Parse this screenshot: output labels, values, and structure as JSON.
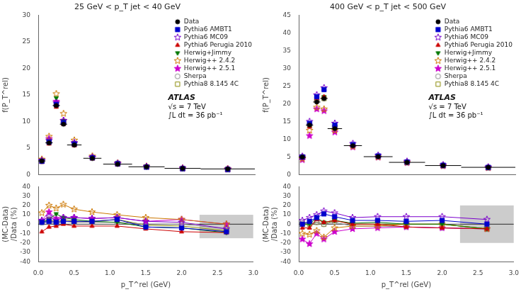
{
  "chart_data": [
    {
      "type": "scatter",
      "title": "25 GeV < p_T jet < 40 GeV",
      "y_label": "f(P_T^rel)",
      "x": [
        0.05,
        0.15,
        0.25,
        0.35,
        0.5,
        0.75,
        1.1,
        1.5,
        2.0,
        2.625
      ],
      "xlim": [
        0,
        3
      ],
      "xticks": [
        {
          "value": 0,
          "label": "0.0"
        },
        {
          "value": 0.5,
          "label": "0.5"
        },
        {
          "value": 1,
          "label": "1.0"
        },
        {
          "value": 1.5,
          "label": "1.5"
        },
        {
          "value": 2,
          "label": "2.0"
        },
        {
          "value": 2.5,
          "label": "2.5"
        },
        {
          "value": 3,
          "label": "3.0"
        }
      ],
      "ylim": [
        0,
        30
      ],
      "yticks": [
        0,
        5,
        10,
        15,
        20,
        25,
        30
      ],
      "grid": false,
      "legend": "upper right",
      "tick_labels": "y",
      "annotations": [
        "ATLAS",
        "√s = 7 TeV",
        "∫L dt = 36 pb⁻¹"
      ],
      "series": [
        {
          "name": "Data",
          "color": "#000000",
          "marker": "circle",
          "values": [
            2.6,
            6.0,
            13.0,
            9.5,
            5.6,
            3.1,
            2.0,
            1.5,
            1.2,
            1.1
          ],
          "x_errors": [
            0.05,
            0.05,
            0.05,
            0.05,
            0.1,
            0.125,
            0.2,
            0.25,
            0.25,
            0.375
          ]
        },
        {
          "name": "Pythia6 AMBT1",
          "color": "#0000cc",
          "marker": "square",
          "values": [
            2.55,
            6.15,
            13.2,
            9.8,
            5.8,
            3.2,
            2.1,
            1.46,
            1.16,
            1.01
          ]
        },
        {
          "name": "Pythia6 MC09",
          "color": "#7b00cc",
          "marker": "star_open",
          "values": [
            2.7,
            6.5,
            13.5,
            10.2,
            6.0,
            3.3,
            2.14,
            1.55,
            1.22,
            1.05
          ]
        },
        {
          "name": "Pythia6 Perugia 2010",
          "color": "#cc0000",
          "marker": "triangle",
          "values": [
            2.38,
            5.82,
            12.74,
            9.5,
            5.49,
            3.04,
            1.96,
            1.43,
            1.1,
            1.0
          ]
        },
        {
          "name": "Herwig+Jimmy",
          "color": "#007700",
          "marker": "triangle_down",
          "values": [
            2.63,
            6.3,
            14.43,
            10.15,
            5.88,
            3.19,
            2.04,
            1.46,
            1.15,
            1.0
          ]
        },
        {
          "name": "Herwig++ 2.4.2",
          "color": "#cc7700",
          "marker": "star_open",
          "values": [
            2.91,
            7.2,
            15.21,
            11.49,
            6.49,
            3.5,
            2.2,
            1.61,
            1.26,
            1.1
          ]
        },
        {
          "name": "Herwig++ 2.5.1",
          "color": "#cc00cc",
          "marker": "star",
          "values": [
            2.71,
            6.78,
            13.78,
            10.17,
            6.0,
            3.29,
            2.14,
            1.55,
            1.26,
            1.1
          ]
        },
        {
          "name": "Sherpa",
          "color": "#888888",
          "marker": "circle_open",
          "values": [
            2.53,
            6.12,
            13.0,
            9.79,
            5.71,
            3.16,
            2.04,
            1.5,
            1.2,
            1.04
          ]
        },
        {
          "name": "Pythia8 8.145 4C",
          "color": "#888800",
          "marker": "square_open",
          "values": [
            2.65,
            6.3,
            13.26,
            9.98,
            5.77,
            3.19,
            2.1,
            1.48,
            1.18,
            1.02
          ]
        }
      ]
    },
    {
      "type": "line",
      "x_label": "p_T^rel (GeV)",
      "y_label": "(MC-Data)\n/Data (%)",
      "x": [
        0.05,
        0.15,
        0.25,
        0.35,
        0.5,
        0.75,
        1.1,
        1.5,
        2.0,
        2.625
      ],
      "xlim": [
        0,
        3
      ],
      "xticks": [
        {
          "value": 0,
          "label": "0.0"
        },
        {
          "value": 0.5,
          "label": "0.5"
        },
        {
          "value": 1,
          "label": "1.0"
        },
        {
          "value": 1.5,
          "label": "1.5"
        },
        {
          "value": 2,
          "label": "2.0"
        },
        {
          "value": 2.5,
          "label": "2.5"
        },
        {
          "value": 3,
          "label": "3.0"
        }
      ],
      "ylim": [
        -40,
        40
      ],
      "yticks": [
        -40,
        -30,
        -20,
        -10,
        0,
        10,
        20,
        30,
        40
      ],
      "grid": false,
      "band": {
        "x0": 2.25,
        "x1": 3.0,
        "y0": -15,
        "y1": 10,
        "color": "#cccccc"
      },
      "hline": {
        "y": 0,
        "color": "#000000"
      },
      "series": [
        {
          "name": "Pythia6 AMBT1",
          "color": "#0000cc",
          "marker": "square",
          "values": [
            2,
            3,
            2,
            3,
            3,
            3,
            5,
            -3,
            -4,
            -8
          ]
        },
        {
          "name": "Pythia6 MC09",
          "color": "#7b00cc",
          "marker": "star_open",
          "values": [
            4,
            8,
            4,
            7,
            7,
            6,
            7,
            3,
            2,
            -5
          ]
        },
        {
          "name": "Pythia6 Perugia 2010",
          "color": "#cc0000",
          "marker": "triangle",
          "values": [
            -8,
            -3,
            -2,
            0,
            -2,
            -2,
            -2,
            -5,
            -8,
            -9
          ]
        },
        {
          "name": "Herwig+Jimmy",
          "color": "#007700",
          "marker": "triangle_down",
          "values": [
            2,
            5,
            11,
            7,
            5,
            3,
            2,
            -3,
            -4,
            -9
          ]
        },
        {
          "name": "Herwig++ 2.4.2",
          "color": "#cc7700",
          "marker": "star_open",
          "values": [
            12,
            20,
            17,
            21,
            16,
            13,
            10,
            7,
            5,
            0
          ]
        },
        {
          "name": "Herwig++ 2.5.1",
          "color": "#cc00cc",
          "marker": "star",
          "values": [
            4,
            13,
            6,
            7,
            7,
            6,
            7,
            3,
            5,
            0
          ]
        },
        {
          "name": "Sherpa",
          "color": "#888888",
          "marker": "circle_open",
          "values": [
            2,
            2,
            0,
            3,
            2,
            2,
            2,
            0,
            0,
            -5
          ]
        },
        {
          "name": "Pythia8 8.145 4C",
          "color": "#888800",
          "marker": "square_open",
          "values": [
            2,
            5,
            2,
            5,
            3,
            3,
            5,
            -1,
            -2,
            -7
          ]
        }
      ]
    },
    {
      "type": "scatter",
      "title": "400 GeV < p_T jet < 500 GeV",
      "y_label": "f(P_T^rel)",
      "x": [
        0.05,
        0.15,
        0.25,
        0.35,
        0.5,
        0.75,
        1.1,
        1.5,
        2.0,
        2.625
      ],
      "xlim": [
        0,
        3
      ],
      "xticks": [
        {
          "value": 0,
          "label": "0.0"
        },
        {
          "value": 0.5,
          "label": "0.5"
        },
        {
          "value": 1,
          "label": "1.0"
        },
        {
          "value": 1.5,
          "label": "1.5"
        },
        {
          "value": 2,
          "label": "2.0"
        },
        {
          "value": 2.5,
          "label": "2.5"
        },
        {
          "value": 3,
          "label": "3.0"
        }
      ],
      "ylim": [
        0,
        45
      ],
      "yticks": [
        0,
        5,
        10,
        15,
        20,
        25,
        30,
        35,
        40,
        45
      ],
      "grid": false,
      "legend": "upper right",
      "tick_labels": "y",
      "annotations": [
        "ATLAS",
        "√s = 7 TeV",
        "∫L dt = 36 pb⁻¹"
      ],
      "series": [
        {
          "name": "Data",
          "color": "#000000",
          "marker": "circle",
          "values": [
            5.0,
            14.0,
            20.5,
            21.5,
            13.0,
            8.2,
            5.1,
            3.5,
            2.6,
            2.1
          ],
          "x_errors": [
            0.05,
            0.05,
            0.05,
            0.05,
            0.1,
            0.125,
            0.2,
            0.25,
            0.25,
            0.375
          ]
        },
        {
          "name": "Pythia6 AMBT1",
          "color": "#0000cc",
          "marker": "square",
          "values": [
            5.0,
            14.5,
            22.0,
            24.0,
            14.0,
            8.5,
            5.3,
            3.6,
            2.7,
            2.1
          ]
        },
        {
          "name": "Pythia6 MC09",
          "color": "#7b00cc",
          "marker": "star_open",
          "values": [
            5.2,
            15.0,
            22.5,
            24.5,
            14.5,
            8.8,
            5.5,
            3.8,
            2.8,
            2.2
          ]
        },
        {
          "name": "Pythia6 Perugia 2010",
          "color": "#cc0000",
          "marker": "triangle",
          "values": [
            4.8,
            13.5,
            21.5,
            22.0,
            13.5,
            8.2,
            5.1,
            3.4,
            2.5,
            2.0
          ]
        },
        {
          "name": "Herwig+Jimmy",
          "color": "#007700",
          "marker": "triangle_down",
          "values": [
            5.0,
            14.0,
            22.0,
            22.0,
            13.5,
            8.3,
            5.2,
            3.5,
            2.6,
            2.0
          ]
        },
        {
          "name": "Herwig++ 2.4.2",
          "color": "#cc7700",
          "marker": "star_open",
          "values": [
            4.5,
            12.5,
            19.0,
            18.5,
            12.5,
            8.0,
            5.0,
            3.5,
            2.6,
            2.0
          ]
        },
        {
          "name": "Herwig++ 2.5.1",
          "color": "#cc00cc",
          "marker": "star",
          "values": [
            4.2,
            11.0,
            18.5,
            18.0,
            12.0,
            7.8,
            4.9,
            3.4,
            2.5,
            2.0
          ]
        },
        {
          "name": "Sherpa",
          "color": "#888888",
          "marker": "circle_open",
          "values": [
            5.1,
            14.2,
            21.0,
            21.5,
            13.2,
            8.0,
            5.0,
            3.4,
            2.5,
            2.0
          ]
        },
        {
          "name": "Pythia8 8.145 4C",
          "color": "#888800",
          "marker": "square_open",
          "values": [
            5.0,
            14.0,
            21.0,
            21.5,
            13.5,
            8.2,
            5.1,
            3.5,
            2.6,
            2.0
          ]
        }
      ]
    },
    {
      "type": "line",
      "x_label": "p_T^rel (GeV)",
      "y_label": "(MC-Data)\n/Data (%)",
      "x": [
        0.05,
        0.15,
        0.25,
        0.35,
        0.5,
        0.75,
        1.1,
        1.5,
        2.0,
        2.625
      ],
      "xlim": [
        0,
        3
      ],
      "xticks": [
        {
          "value": 0,
          "label": "0.0"
        },
        {
          "value": 0.5,
          "label": "0.5"
        },
        {
          "value": 1,
          "label": "1.0"
        },
        {
          "value": 1.5,
          "label": "1.5"
        },
        {
          "value": 2,
          "label": "2.0"
        },
        {
          "value": 2.5,
          "label": "2.5"
        },
        {
          "value": 3,
          "label": "3.0"
        }
      ],
      "ylim": [
        -40,
        40
      ],
      "yticks": [
        -40,
        -30,
        -20,
        -10,
        0,
        10,
        20,
        30,
        40
      ],
      "grid": false,
      "band": {
        "x0": 2.25,
        "x1": 3.0,
        "y0": -20,
        "y1": 20,
        "color": "#cccccc"
      },
      "hline": {
        "y": 0,
        "color": "#000000"
      },
      "series": [
        {
          "name": "Pythia6 AMBT1",
          "color": "#0000cc",
          "marker": "square",
          "values": [
            0,
            3,
            7,
            11,
            8,
            4,
            4,
            3,
            4,
            0
          ]
        },
        {
          "name": "Pythia6 MC09",
          "color": "#7b00cc",
          "marker": "star_open",
          "values": [
            4,
            7,
            10,
            14,
            12,
            7,
            8,
            8,
            8,
            5
          ]
        },
        {
          "name": "Pythia6 Perugia 2010",
          "color": "#cc0000",
          "marker": "triangle",
          "values": [
            -4,
            -4,
            5,
            2,
            4,
            0,
            0,
            -3,
            -4,
            -5
          ]
        },
        {
          "name": "Herwig+Jimmy",
          "color": "#007700",
          "marker": "triangle_down",
          "values": [
            0,
            0,
            7,
            2,
            4,
            1,
            2,
            0,
            0,
            -5
          ]
        },
        {
          "name": "Herwig++ 2.4.2",
          "color": "#cc7700",
          "marker": "star_open",
          "values": [
            -10,
            -11,
            -7,
            -14,
            -4,
            -2,
            -2,
            0,
            0,
            -5
          ]
        },
        {
          "name": "Herwig++ 2.5.1",
          "color": "#cc00cc",
          "marker": "star",
          "values": [
            -16,
            -21,
            -10,
            -16,
            -8,
            -5,
            -4,
            -3,
            -4,
            -5
          ]
        },
        {
          "name": "Sherpa",
          "color": "#888888",
          "marker": "circle_open",
          "values": [
            2,
            1,
            2,
            0,
            2,
            -2,
            -2,
            -3,
            -4,
            -5
          ]
        },
        {
          "name": "Pythia8 8.145 4C",
          "color": "#888800",
          "marker": "square_open",
          "values": [
            0,
            0,
            2,
            0,
            4,
            0,
            0,
            0,
            0,
            -5
          ]
        }
      ]
    }
  ]
}
